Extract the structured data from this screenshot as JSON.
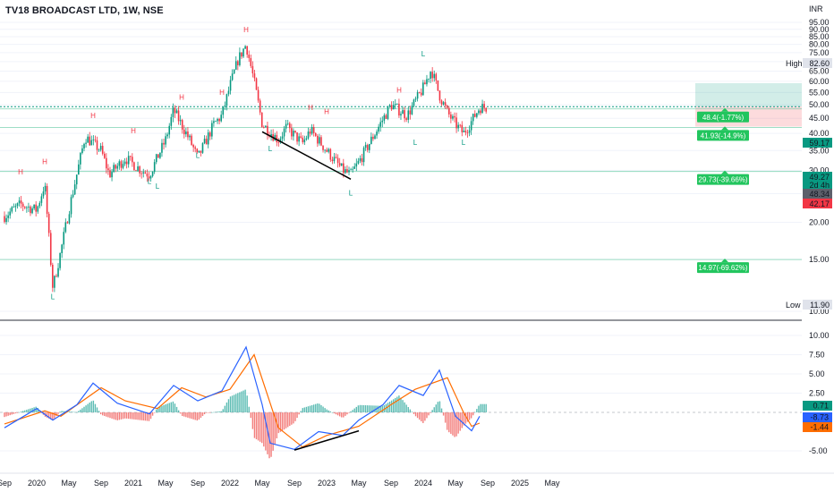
{
  "chart_data": {
    "title": "TV18 BROADCAST LTD, 1W, NSE",
    "currency": "INR",
    "type": "candlestick",
    "price_axis": {
      "ticks": [
        "95.00",
        "90.00",
        "85.00",
        "80.00",
        "75.00",
        "70.00",
        "65.00",
        "60.00",
        "55.00",
        "50.00",
        "45.00",
        "40.00",
        "35.00",
        "30.00",
        "25.00",
        "20.00",
        "15.00",
        "10.00"
      ],
      "scale": "log"
    },
    "time_axis": {
      "ticks": [
        "Sep",
        "2020",
        "May",
        "Sep",
        "2021",
        "May",
        "Sep",
        "2022",
        "May",
        "Sep",
        "2023",
        "May",
        "Sep",
        "2024",
        "May",
        "Sep",
        "2025",
        "May"
      ]
    },
    "price_tags": [
      {
        "label": "High",
        "value": "82.60",
        "color": "#e0e3eb",
        "text_color": "#131722"
      },
      {
        "label": "",
        "value": "59.17",
        "color": "#089981",
        "text_color": "#ffffff"
      },
      {
        "label": "",
        "value": "49.27",
        "color": "#089981",
        "text_color": "#ffffff"
      },
      {
        "label": "",
        "value": "2d 4h",
        "color": "#089981",
        "text_color": "#ffffff"
      },
      {
        "label": "",
        "value": "48.34",
        "color": "#5d606b",
        "text_color": "#ffffff"
      },
      {
        "label": "",
        "value": "42.17",
        "color": "#f23645",
        "text_color": "#ffffff"
      },
      {
        "label": "Low",
        "value": "11.90",
        "color": "#e0e3eb",
        "text_color": "#131722"
      }
    ],
    "levels": [
      {
        "price": 48.4,
        "label": "48.4(-1.77%)"
      },
      {
        "price": 41.93,
        "label": "41.93(-14.9%)"
      },
      {
        "price": 29.73,
        "label": "29.73(-39.66%)"
      },
      {
        "price": 14.97,
        "label": "14.97(-69.62%)"
      }
    ],
    "pivot_markers": [
      "H",
      "H",
      "H",
      "H",
      "H",
      "H",
      "H",
      "H",
      "H",
      "H",
      "L",
      "L",
      "L",
      "L",
      "L",
      "L",
      "L",
      "L",
      "L",
      "L"
    ],
    "close_series": [
      {
        "date": "2019-09",
        "close": 21
      },
      {
        "date": "2019-11",
        "close": 23
      },
      {
        "date": "2020-01",
        "close": 22
      },
      {
        "date": "2020-02",
        "close": 27
      },
      {
        "date": "2020-03",
        "close": 12
      },
      {
        "date": "2020-04",
        "close": 16
      },
      {
        "date": "2020-05",
        "close": 22
      },
      {
        "date": "2020-07",
        "close": 39
      },
      {
        "date": "2020-09",
        "close": 35
      },
      {
        "date": "2020-10",
        "close": 29
      },
      {
        "date": "2020-12",
        "close": 33
      },
      {
        "date": "2021-02",
        "close": 30
      },
      {
        "date": "2021-03",
        "close": 29
      },
      {
        "date": "2021-05",
        "close": 38
      },
      {
        "date": "2021-06",
        "close": 48
      },
      {
        "date": "2021-08",
        "close": 38
      },
      {
        "date": "2021-09",
        "close": 33
      },
      {
        "date": "2021-11",
        "close": 43
      },
      {
        "date": "2021-12",
        "close": 46
      },
      {
        "date": "2022-01",
        "close": 58
      },
      {
        "date": "2022-02",
        "close": 71
      },
      {
        "date": "2022-03",
        "close": 80
      },
      {
        "date": "2022-04",
        "close": 60
      },
      {
        "date": "2022-05",
        "close": 43
      },
      {
        "date": "2022-07",
        "close": 38
      },
      {
        "date": "2022-08",
        "close": 42
      },
      {
        "date": "2022-10",
        "close": 37
      },
      {
        "date": "2022-11",
        "close": 41
      },
      {
        "date": "2023-01",
        "close": 35
      },
      {
        "date": "2023-03",
        "close": 30
      },
      {
        "date": "2023-04",
        "close": 29
      },
      {
        "date": "2023-05",
        "close": 32
      },
      {
        "date": "2023-07",
        "close": 40
      },
      {
        "date": "2023-09",
        "close": 50
      },
      {
        "date": "2023-11",
        "close": 46
      },
      {
        "date": "2024-01",
        "close": 57
      },
      {
        "date": "2024-02",
        "close": 66
      },
      {
        "date": "2024-03",
        "close": 54
      },
      {
        "date": "2024-04",
        "close": 47
      },
      {
        "date": "2024-05",
        "close": 43
      },
      {
        "date": "2024-06",
        "close": 40
      },
      {
        "date": "2024-07",
        "close": 44
      },
      {
        "date": "2024-08",
        "close": 49
      }
    ],
    "macd": {
      "ticks": [
        "10.00",
        "7.50",
        "5.00",
        "2.50",
        "-5.00"
      ],
      "tags": [
        {
          "value": "0.71",
          "color": "#089981"
        },
        {
          "value": "-8.73",
          "color": "#2962ff"
        },
        {
          "value": "-1.44",
          "color": "#ff6d00"
        }
      ],
      "macd_series": [
        {
          "date": "2019-09",
          "value": -2
        },
        {
          "date": "2020-01",
          "value": 0.5
        },
        {
          "date": "2020-03",
          "value": -1
        },
        {
          "date": "2020-06",
          "value": 1
        },
        {
          "date": "2020-08",
          "value": 3.8
        },
        {
          "date": "2020-11",
          "value": 1.2
        },
        {
          "date": "2021-03",
          "value": -0.2
        },
        {
          "date": "2021-06",
          "value": 3.5
        },
        {
          "date": "2021-09",
          "value": 1.5
        },
        {
          "date": "2021-12",
          "value": 2.8
        },
        {
          "date": "2022-03",
          "value": 8.5
        },
        {
          "date": "2022-05",
          "value": 1
        },
        {
          "date": "2022-06",
          "value": -4
        },
        {
          "date": "2022-09",
          "value": -4.8
        },
        {
          "date": "2022-12",
          "value": -2.5
        },
        {
          "date": "2023-03",
          "value": -3
        },
        {
          "date": "2023-05",
          "value": -1
        },
        {
          "date": "2023-08",
          "value": 1
        },
        {
          "date": "2023-10",
          "value": 3.5
        },
        {
          "date": "2024-01",
          "value": 2.2
        },
        {
          "date": "2024-03",
          "value": 5.5
        },
        {
          "date": "2024-05",
          "value": -0.5
        },
        {
          "date": "2024-07",
          "value": -2.4
        },
        {
          "date": "2024-08",
          "value": -0.5
        }
      ],
      "signal_series": [
        {
          "date": "2019-09",
          "value": -1.5
        },
        {
          "date": "2020-02",
          "value": 0.2
        },
        {
          "date": "2020-04",
          "value": -0.5
        },
        {
          "date": "2020-09",
          "value": 3.2
        },
        {
          "date": "2020-12",
          "value": 1.5
        },
        {
          "date": "2021-04",
          "value": 0.5
        },
        {
          "date": "2021-07",
          "value": 3.2
        },
        {
          "date": "2021-10",
          "value": 2
        },
        {
          "date": "2022-01",
          "value": 3
        },
        {
          "date": "2022-04",
          "value": 7.5
        },
        {
          "date": "2022-07",
          "value": -2
        },
        {
          "date": "2022-10",
          "value": -4.5
        },
        {
          "date": "2023-01",
          "value": -3
        },
        {
          "date": "2023-05",
          "value": -1.8
        },
        {
          "date": "2023-09",
          "value": 1
        },
        {
          "date": "2023-12",
          "value": 3
        },
        {
          "date": "2024-04",
          "value": 4.5
        },
        {
          "date": "2024-06",
          "value": 0
        },
        {
          "date": "2024-07",
          "value": -1.8
        },
        {
          "date": "2024-08",
          "value": -1.4
        }
      ]
    }
  }
}
